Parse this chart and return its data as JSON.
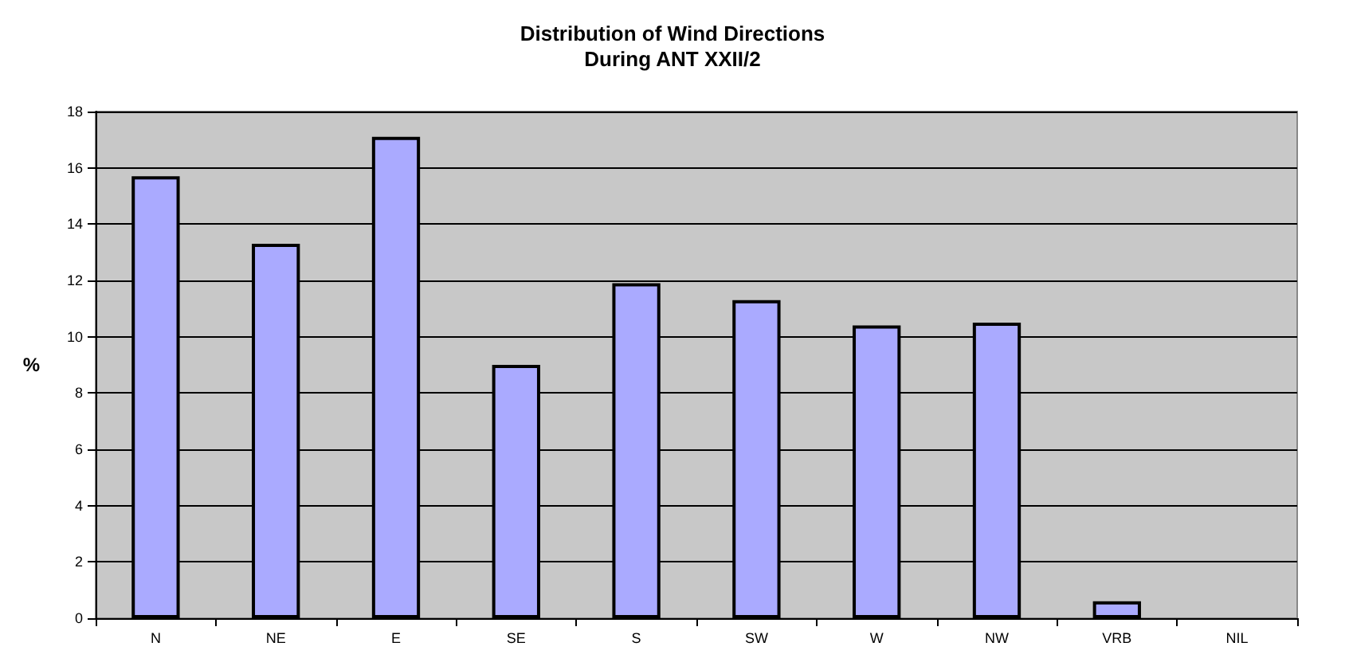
{
  "chart_data": {
    "type": "bar",
    "title": "Distribution of Wind Directions\nDuring ANT XXII/2",
    "ylabel": "%",
    "categories": [
      "N",
      "NE",
      "E",
      "SE",
      "S",
      "SW",
      "W",
      "NW",
      "VRB",
      "NIL"
    ],
    "values": [
      15.7,
      13.3,
      17.1,
      9.0,
      11.9,
      11.3,
      10.4,
      10.5,
      0.6,
      0
    ],
    "color": "#aaaaff",
    "ylim": [
      0,
      18
    ],
    "yticks": [
      0,
      2,
      4,
      6,
      8,
      10,
      12,
      14,
      16,
      18
    ],
    "grid": "y"
  }
}
